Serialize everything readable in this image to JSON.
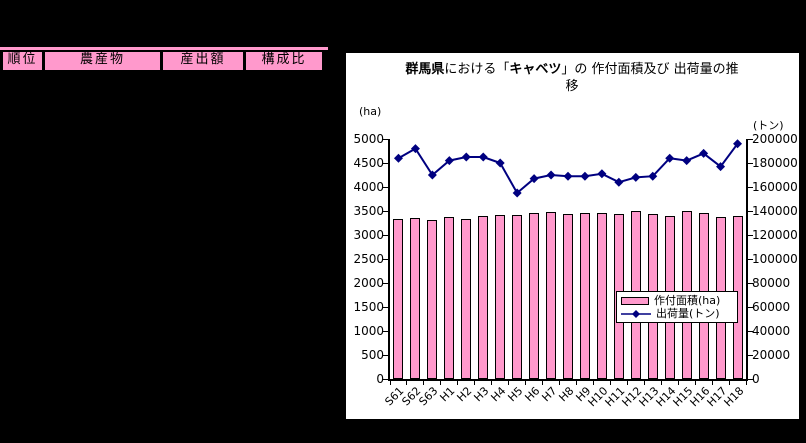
{
  "window": {
    "background": "#000000"
  },
  "table": {
    "headers": [
      "順位",
      "農産物",
      "産出額",
      "構成比"
    ],
    "header_bg": "#FF99CC"
  },
  "chart": {
    "background": "#FFFFFF",
    "title_line1_segments": [
      {
        "text": "群馬県",
        "bold": true
      },
      {
        "text": "における「",
        "bold": false
      },
      {
        "text": "キャベツ",
        "bold": true
      },
      {
        "text": "」の 作付面積及び 出荷量の推",
        "bold": false
      }
    ],
    "title_line2": "移",
    "left_axis_unit": "(ha)",
    "right_axis_unit": "(トン)"
  },
  "chart_data": {
    "type": "combo",
    "title": "群馬県における「キャベツ」の作付面積及び出荷量の推移",
    "categories": [
      "S61",
      "S62",
      "S63",
      "H1",
      "H2",
      "H3",
      "H4",
      "H5",
      "H6",
      "H7",
      "H8",
      "H9",
      "H10",
      "H11",
      "H12",
      "H13",
      "H14",
      "H15",
      "H16",
      "H17",
      "H18"
    ],
    "series": [
      {
        "name": "作付面積(ha)",
        "type": "bar",
        "axis": "left",
        "color": "#FF99CC",
        "values": [
          3330,
          3360,
          3320,
          3370,
          3340,
          3390,
          3420,
          3420,
          3450,
          3470,
          3440,
          3460,
          3460,
          3440,
          3490,
          3440,
          3400,
          3490,
          3460,
          3370,
          3400
        ]
      },
      {
        "name": "出荷量(トン)",
        "type": "line",
        "axis": "right",
        "color": "#000080",
        "values": [
          184000,
          192000,
          170000,
          182000,
          185000,
          185000,
          180000,
          155000,
          167000,
          170000,
          169000,
          169000,
          171000,
          164000,
          168000,
          169000,
          184000,
          182000,
          188000,
          177000,
          196000
        ]
      }
    ],
    "left_axis": {
      "unit": "(ha)",
      "min": 0,
      "max": 5000,
      "step": 500,
      "ticks": [
        0,
        500,
        1000,
        1500,
        2000,
        2500,
        3000,
        3500,
        4000,
        4500,
        5000
      ]
    },
    "right_axis": {
      "unit": "(トン)",
      "min": 0,
      "max": 200000,
      "step": 20000,
      "ticks": [
        0,
        20000,
        40000,
        60000,
        80000,
        100000,
        120000,
        140000,
        160000,
        180000,
        200000
      ]
    },
    "grid": false,
    "legend_position": "inside-right",
    "legend": [
      "作付面積(ha)",
      "出荷量(トン)"
    ]
  }
}
